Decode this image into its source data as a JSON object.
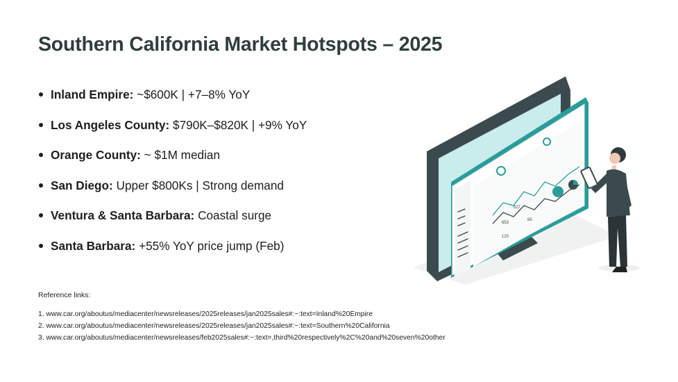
{
  "slide": {
    "title": "Southern California Market Hotspots – 2025",
    "bullets": [
      {
        "label": "Inland Empire:",
        "text": "~$600K | +7–8% YoY"
      },
      {
        "label": "Los Angeles County:",
        "text": "$790K–$820K | +9% YoY"
      },
      {
        "label": "Orange County:",
        "text": "~ $1M median"
      },
      {
        "label": "San Diego:",
        "text": "Upper $800Ks | Strong demand"
      },
      {
        "label": "Ventura & Santa Barbara:",
        "text": "Coastal surge"
      },
      {
        "label": "Santa Barbara:",
        "text": "+55% YoY price jump (Feb)"
      }
    ],
    "references_heading": "Reference links:",
    "references": [
      "1. www.car.org/aboutus/mediacenter/newsreleases/2025releases/jan2025sales#:~:text=Inland%20Empire",
      "2. www.car.org/aboutus/mediacenter/newsreleases/2025releases/jan2025sales#:~:text=Southern%20California",
      "3. www.car.org/aboutus/mediacenter/newsreleases/feb2025sales#:~:text=,third%20respectively%2C%20and%20seven%20other"
    ]
  },
  "illustration": {
    "accent_color": "#2a9d9a",
    "dark_color": "#3b4a4d",
    "screen_tint": "#c9ecec",
    "dashboard_numbers": [
      "627",
      "653",
      "65",
      "120"
    ]
  }
}
